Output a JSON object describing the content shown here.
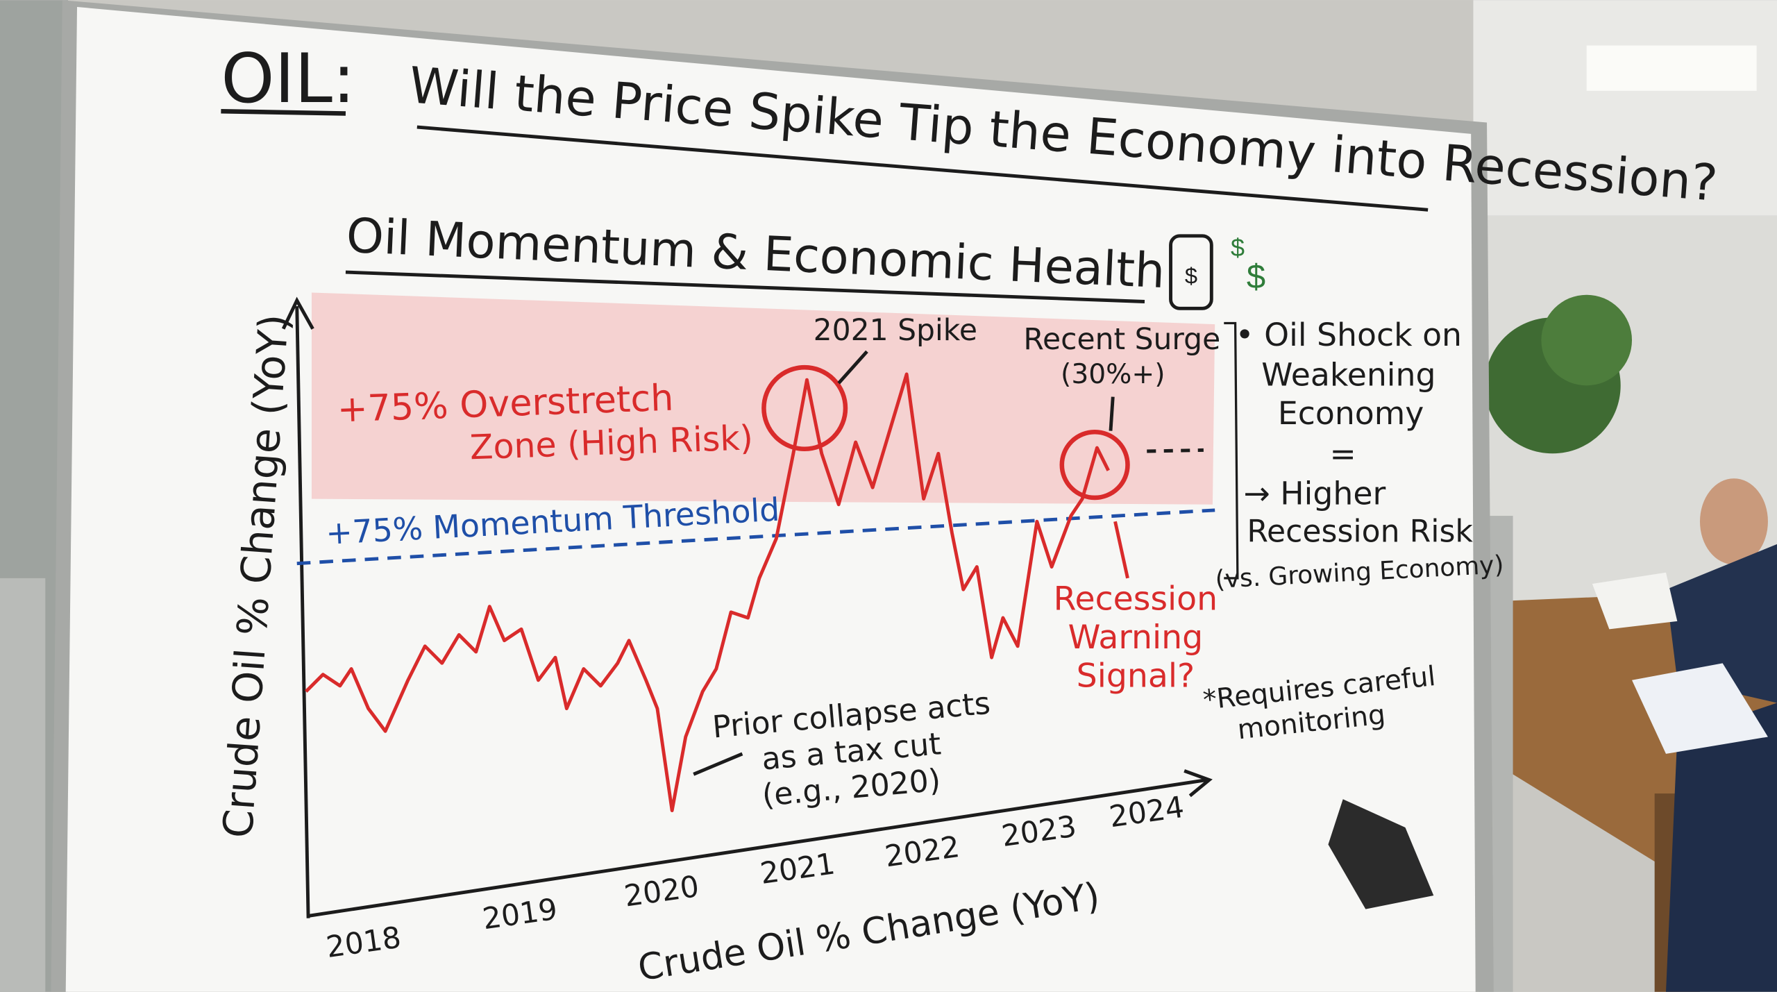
{
  "header": {
    "lead": "OIL:",
    "title": "Will the Price Spike Tip the Economy into Recession?"
  },
  "subtitle": "Oil Momentum & Economic Health",
  "icon": {
    "barrel": "$",
    "from": "$",
    "to": "$"
  },
  "chart": {
    "y_label": "Crude Oil % Change (YoY)",
    "x_label": "Crude Oil % Change (YoY)",
    "years": [
      "2018",
      "2019",
      "2020",
      "2021",
      "2022",
      "2023",
      "2024"
    ],
    "zone_label": [
      "+75% Overstretch",
      "Zone (High Risk)"
    ],
    "threshold_label": "+75% Momentum Threshold",
    "spike_label": "2021 Spike",
    "surge_label": [
      "Recent Surge",
      "(30%+)"
    ],
    "collapse_label": [
      "Prior collapse acts",
      "as a tax cut",
      "(e.g., 2020)"
    ],
    "warning_label": [
      "Recession",
      "Warning",
      "Signal?"
    ]
  },
  "side_notes": {
    "lines": [
      "• Oil Shock on",
      "Weakening",
      "Economy",
      "=",
      "→ Higher",
      "Recession Risk",
      "(vs. Growing Economy)"
    ],
    "footnote": [
      "*Requires careful",
      "monitoring"
    ]
  }
}
